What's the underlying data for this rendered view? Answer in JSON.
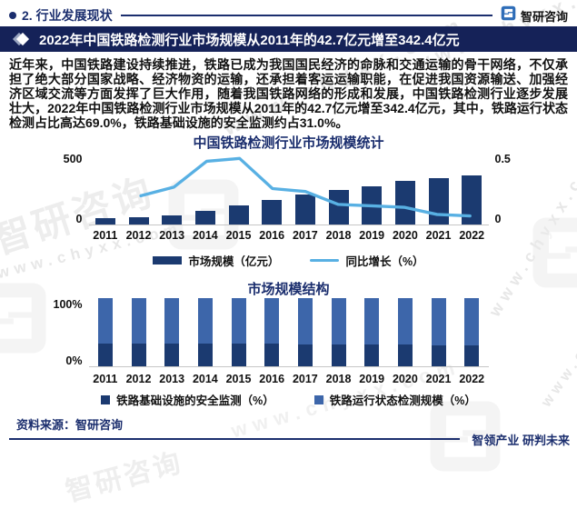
{
  "header": {
    "section_label": "2. 行业发展现状",
    "brand": "智研咨询"
  },
  "banner": {
    "title": "2022年中国铁路检测行业市场规模从2011年的42.7亿元增至342.4亿元"
  },
  "paragraph": "近年来，中国铁路建设持续推进，铁路已成为我国国民经济的命脉和交通运输的骨干网络，不仅承担了绝大部分国家战略、经济物资的运输，还承担着客运运输职能，在促进我国资源输送、加强经济区域交流等方面发挥了巨大作用，随着我国铁路网络的形成和发展，中国铁路检测行业逐步发展壮大，2022年中国铁路检测行业市场规模从2011年的42.7亿元增至342.4亿元，其中，铁路运行状态检测占比高达69.0%，铁路基础设施的安全监测约占31.0%。",
  "watermark": {
    "url_text": "www.chyxx.com",
    "brand_text": "智研咨询"
  },
  "footer": {
    "source": "资料来源：智研咨询",
    "slogan": "智领产业 研判未来"
  },
  "colors": {
    "navy_banner": "#152258",
    "navy_text": "#1b2e6e",
    "bar_navy": "#1b3a70",
    "mid_blue": "#3d66aa",
    "line_blue": "#58b0e3",
    "logo_blue": "#2e6db8",
    "watermark_gray": "#e7e7e7"
  },
  "chart_data": [
    {
      "type": "bar",
      "title": "中国铁路检测行业市场规模统计",
      "categories": [
        "2011",
        "2012",
        "2013",
        "2014",
        "2015",
        "2016",
        "2017",
        "2018",
        "2019",
        "2020",
        "2021",
        "2022"
      ],
      "series": [
        {
          "name": "市场规模（亿元）",
          "chart_type": "bar",
          "axis": "left",
          "color": "#1b3a70",
          "values": [
            42.7,
            51.2,
            64.5,
            92.9,
            135.6,
            169.5,
            208.5,
            237.7,
            268.6,
            300.8,
            321.9,
            342.4
          ]
        },
        {
          "name": "同比增长（%）",
          "chart_type": "line",
          "axis": "right",
          "color": "#58b0e3",
          "values": [
            null,
            0.2,
            0.26,
            0.44,
            0.46,
            0.25,
            0.23,
            0.14,
            0.13,
            0.12,
            0.07,
            0.06
          ]
        }
      ],
      "left_axis": {
        "min": 0,
        "max": 500,
        "ticks": [
          "500",
          "0"
        ]
      },
      "right_axis": {
        "min": 0,
        "max": 0.5,
        "ticks": [
          "0.5",
          "0"
        ]
      },
      "grid": false,
      "legend_position": "bottom"
    },
    {
      "type": "bar",
      "subtype": "stacked-100",
      "title": "市场规模结构",
      "categories": [
        "2011",
        "2012",
        "2013",
        "2014",
        "2015",
        "2016",
        "2017",
        "2018",
        "2019",
        "2020",
        "2021",
        "2022"
      ],
      "series": [
        {
          "name": "铁路基础设施的安全监测（%）",
          "color": "#1b3a70",
          "values": [
            34,
            34,
            33.5,
            33.5,
            33,
            33,
            32.5,
            32,
            32,
            31.5,
            31,
            31
          ]
        },
        {
          "name": "铁路运行状态检测规模（%）",
          "color": "#3d66aa",
          "values": [
            66,
            66,
            66.5,
            66.5,
            67,
            67,
            67.5,
            68,
            68,
            68.5,
            69,
            69
          ]
        }
      ],
      "y_axis": {
        "min": 0,
        "max": 100,
        "ticks": [
          "100%",
          "0%"
        ]
      },
      "grid": false,
      "legend_position": "bottom"
    }
  ]
}
